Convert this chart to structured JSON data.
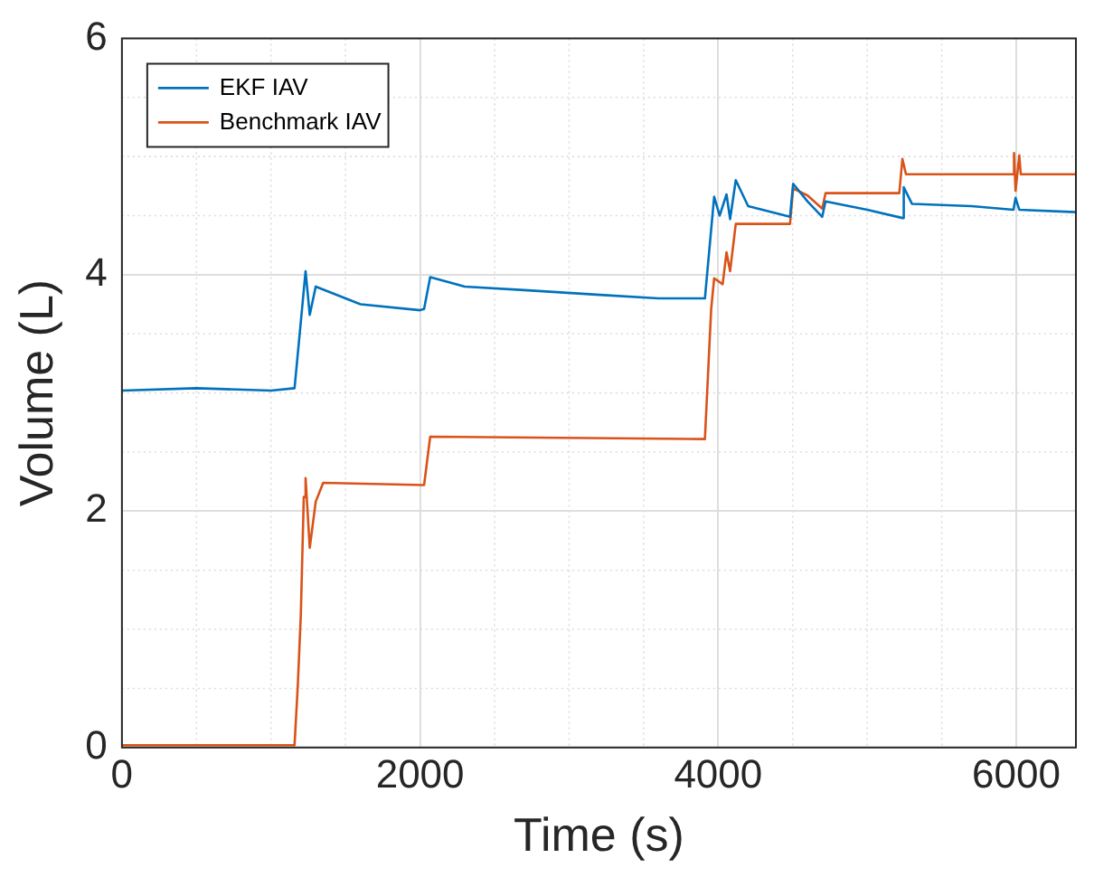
{
  "chart_data": {
    "type": "line",
    "xlabel": "Time (s)",
    "ylabel": "Volume (L)",
    "xlim": [
      0,
      6400
    ],
    "xticks": [
      0,
      2000,
      4000,
      6000
    ],
    "ylim": [
      0,
      6
    ],
    "yticks": [
      0,
      2,
      4,
      6
    ],
    "grid": true,
    "legend": "top left",
    "series": [
      {
        "name": "EKF IAV",
        "color": "#0072bd",
        "x": [
          0,
          500,
          1000,
          1158,
          1200,
          1232,
          1260,
          1300,
          1600,
          2000,
          2027,
          2068,
          2300,
          2700,
          3207,
          3600,
          3911,
          3973,
          4010,
          4056,
          4080,
          4118,
          4201,
          4482,
          4503,
          4600,
          4698,
          4720,
          5000,
          5236,
          5245,
          5300,
          5700,
          5981,
          5995,
          6020,
          6400
        ],
        "values": [
          3.02,
          3.04,
          3.02,
          3.04,
          3.6,
          4.03,
          3.66,
          3.9,
          3.75,
          3.7,
          3.71,
          3.98,
          3.9,
          3.87,
          3.83,
          3.8,
          3.8,
          4.66,
          4.5,
          4.68,
          4.47,
          4.8,
          4.58,
          4.49,
          4.77,
          4.62,
          4.49,
          4.62,
          4.55,
          4.48,
          4.74,
          4.6,
          4.58,
          4.55,
          4.65,
          4.55,
          4.53
        ]
      },
      {
        "name": "Benchmark IAV",
        "color": "#d95319",
        "x": [
          0,
          1158,
          1180,
          1200,
          1220,
          1232,
          1260,
          1300,
          1350,
          2027,
          2068,
          3911,
          3953,
          3973,
          4030,
          4056,
          4080,
          4118,
          4482,
          4503,
          4600,
          4698,
          4720,
          5215,
          5236,
          5260,
          5981,
          5985,
          5995,
          6020,
          6030,
          6400
        ],
        "values": [
          0.02,
          0.02,
          0.53,
          1.12,
          2.12,
          2.28,
          1.69,
          2.08,
          2.24,
          2.22,
          2.63,
          2.61,
          3.71,
          3.97,
          3.92,
          4.19,
          4.03,
          4.43,
          4.43,
          4.73,
          4.67,
          4.56,
          4.69,
          4.69,
          4.98,
          4.85,
          4.85,
          5.03,
          4.71,
          5.01,
          4.85,
          4.85
        ]
      }
    ]
  }
}
